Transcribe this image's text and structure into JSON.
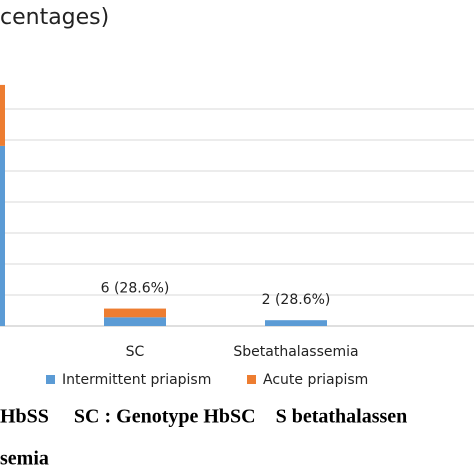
{
  "chart_data": {
    "type": "bar",
    "stacked": true,
    "title": "centages)",
    "categories": [
      null,
      "SC",
      "Sbetathalassemia"
    ],
    "series": [
      {
        "name": "Intermittent priapism",
        "color": "#5b9bd5",
        "values": [
          62,
          3,
          2
        ]
      },
      {
        "name": "Acute priapism",
        "color": "#ed7d31",
        "values": [
          21,
          3,
          0
        ]
      }
    ],
    "total_labels": [
      "%)",
      "6 (28.6%)",
      "2 (28.6%)"
    ],
    "ylim": [
      0,
      84
    ],
    "grid": true,
    "caption": [
      "HbSS     SC : Genotype HbSC    S betathalassen",
      "semia"
    ]
  }
}
